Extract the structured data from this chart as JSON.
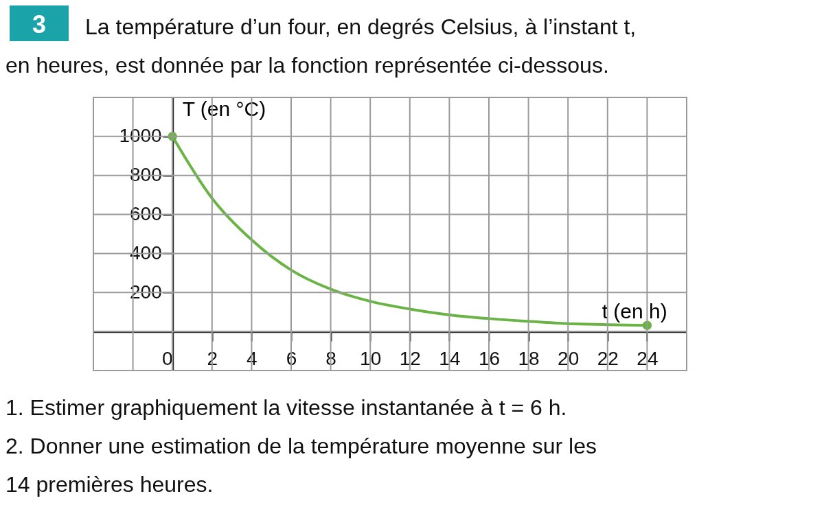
{
  "chart_data": {
    "type": "line",
    "title": "La température d’un four, en degrés Celsius, à l’instant t, en heures, est donnée par la fonction représentée ci-dessous.",
    "xlabel": "t (en h)",
    "ylabel": "T (en °C)",
    "annotations": [
      "3",
      "1. Estimer graphiquement la vitesse instantanée à t = 6 h.",
      "2. Donner une estimation de la température moyenne sur les 14 premières heures."
    ],
    "xlim": [
      -4,
      26
    ],
    "ylim": [
      -200,
      1200
    ],
    "xticks": [
      0,
      2,
      4,
      6,
      8,
      10,
      12,
      14,
      16,
      18,
      20,
      22,
      24
    ],
    "yticks": [
      200,
      400,
      600,
      800,
      1000
    ],
    "grid": true,
    "series": [
      {
        "color": "#6ab446",
        "x": [
          0,
          2,
          4,
          6,
          8,
          10,
          12,
          14,
          16,
          18,
          20,
          22,
          24
        ],
        "values": [
          1000,
          683,
          470,
          315,
          217,
          155,
          115,
          85,
          66,
          52,
          40,
          35,
          31
        ]
      },
      {
        "type": "scatter",
        "color": "#6ab446",
        "x": [
          0,
          24
        ],
        "values": [
          1000,
          31
        ]
      }
    ]
  }
}
